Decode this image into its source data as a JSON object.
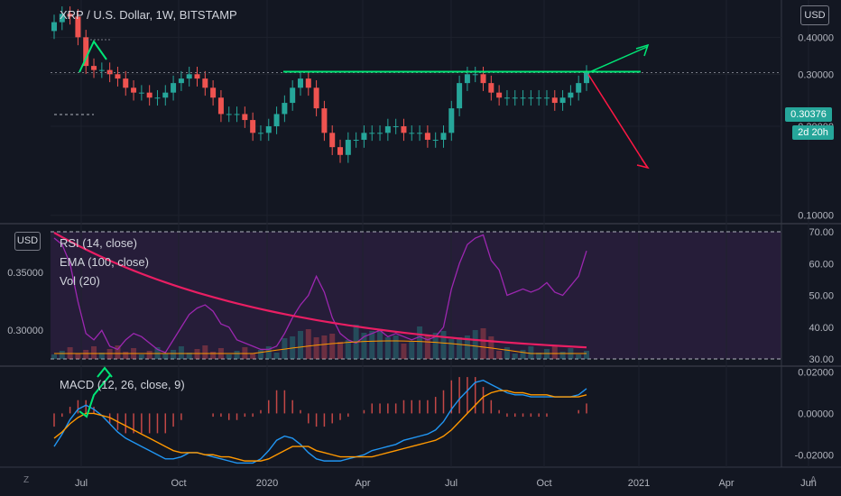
{
  "header": {
    "title": "XRP / U.S. Dollar, 1W, BITSTAMP",
    "currency_button": "USD",
    "left_currency_button": "USD",
    "last_price": "0.30376",
    "countdown": "2d 20h"
  },
  "indicators": {
    "rsi_label": "RSI (14, close)",
    "ema_label": "EMA (100, close)",
    "vol_label": "Vol (20)",
    "macd_label": "MACD (12, 26, close, 9)"
  },
  "corner": {
    "left": "Z",
    "right": "A"
  },
  "colors": {
    "background": "#131722",
    "up": "#26a69a",
    "down": "#ef5350",
    "rsi": "#9c27b0",
    "ema": "#e91e63",
    "macd": "#2196f3",
    "signal": "#ff9800",
    "annotation_green": "#00e676",
    "annotation_red": "#ff1744"
  },
  "chart_data": [
    {
      "type": "candlestick",
      "title": "XRP / U.S. Dollar, 1W, BITSTAMP",
      "y_ticks": [
        "0.40000",
        "0.30000",
        "0.20000",
        "0.10000"
      ],
      "y_scale": "log",
      "x_ticks": [
        "Jul",
        "Oct",
        "2020",
        "Apr",
        "Jul",
        "Oct",
        "2021",
        "Apr",
        "Jun"
      ],
      "ylim": [
        0.095,
        0.52
      ],
      "last_price": 0.30376,
      "annotations": [
        "resistance-line at 0.3038",
        "up-arrow target ~0.44",
        "down-arrow target ~0.20"
      ]
    },
    {
      "type": "line",
      "title": "RSI (14, close)",
      "y_ticks": [
        "70.00",
        "60.00",
        "50.00",
        "40.00",
        "30.00"
      ],
      "ylim": [
        30,
        70
      ],
      "series": [
        {
          "name": "RSI (14, close)",
          "values": [
            68,
            66,
            60,
            48,
            38,
            36,
            39,
            34,
            33,
            36,
            38,
            37,
            35,
            33,
            32,
            36,
            40,
            44,
            46,
            47,
            45,
            41,
            40,
            36,
            35,
            34,
            33,
            33,
            34,
            38,
            43,
            47,
            50,
            56,
            51,
            43,
            38,
            36,
            35,
            37,
            38,
            39,
            37,
            38,
            37,
            36,
            37,
            36,
            37,
            40,
            52,
            60,
            66,
            68,
            69,
            61,
            58,
            50,
            51,
            52,
            51,
            52,
            54,
            51,
            50,
            53,
            56,
            64
          ]
        }
      ]
    },
    {
      "type": "line",
      "title": "MACD (12, 26, close, 9)",
      "y_ticks": [
        "0.02000",
        "0.00000",
        "-0.02000"
      ],
      "ylim": [
        -0.026,
        0.022
      ],
      "series": [
        {
          "name": "MACD",
          "values": [
            -0.016,
            -0.01,
            -0.003,
            0.002,
            0.004,
            0.002,
            -0.001,
            -0.005,
            -0.009,
            -0.012,
            -0.014,
            -0.016,
            -0.018,
            -0.02,
            -0.022,
            -0.022,
            -0.021,
            -0.019,
            -0.019,
            -0.02,
            -0.021,
            -0.022,
            -0.023,
            -0.024,
            -0.024,
            -0.024,
            -0.022,
            -0.018,
            -0.013,
            -0.011,
            -0.012,
            -0.015,
            -0.019,
            -0.022,
            -0.023,
            -0.023,
            -0.023,
            -0.022,
            -0.021,
            -0.02,
            -0.018,
            -0.017,
            -0.016,
            -0.015,
            -0.013,
            -0.012,
            -0.011,
            -0.01,
            -0.008,
            -0.004,
            0.002,
            0.007,
            0.011,
            0.015,
            0.016,
            0.014,
            0.012,
            0.01,
            0.009,
            0.009,
            0.008,
            0.008,
            0.008,
            0.008,
            0.008,
            0.008,
            0.009,
            0.012
          ]
        },
        {
          "name": "Signal",
          "values": [
            -0.012,
            -0.009,
            -0.005,
            -0.002,
            0.0,
            0.0,
            -0.001,
            -0.002,
            -0.004,
            -0.006,
            -0.008,
            -0.01,
            -0.012,
            -0.014,
            -0.016,
            -0.018,
            -0.019,
            -0.019,
            -0.019,
            -0.02,
            -0.02,
            -0.021,
            -0.021,
            -0.022,
            -0.023,
            -0.023,
            -0.023,
            -0.022,
            -0.02,
            -0.018,
            -0.016,
            -0.016,
            -0.016,
            -0.018,
            -0.019,
            -0.02,
            -0.021,
            -0.021,
            -0.021,
            -0.021,
            -0.021,
            -0.02,
            -0.019,
            -0.018,
            -0.017,
            -0.016,
            -0.015,
            -0.014,
            -0.013,
            -0.011,
            -0.008,
            -0.004,
            0.0,
            0.004,
            0.008,
            0.01,
            0.011,
            0.011,
            0.01,
            0.01,
            0.009,
            0.009,
            0.009,
            0.008,
            0.008,
            0.008,
            0.008,
            0.009
          ]
        }
      ]
    }
  ]
}
